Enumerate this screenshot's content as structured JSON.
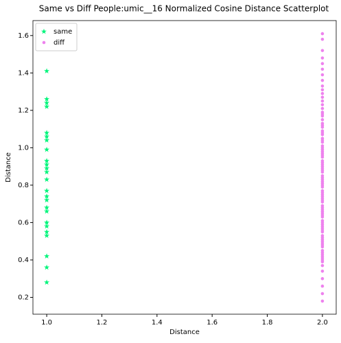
{
  "chart_data": {
    "type": "scatter",
    "title": "Same vs Diff People:umic__16 Normalized Cosine Distance Scatterplot",
    "x_label": "Distance",
    "y_label": "Distance",
    "xlim": [
      0.95,
      2.05
    ],
    "ylim": [
      0.11,
      1.68
    ],
    "xticks": [
      {
        "value": 1,
        "label": "1.0"
      },
      1.2,
      1.4,
      1.6,
      1.8,
      {
        "value": 2,
        "label": "2.0"
      }
    ],
    "yticks": [
      0.2,
      0.4,
      0.6,
      0.8,
      {
        "value": 1,
        "label": "1.0"
      },
      1.2,
      1.4,
      1.6
    ],
    "legend": "upper left",
    "series": [
      {
        "name": "same",
        "color": "#00f57a",
        "marker": "star",
        "x": [
          1,
          1,
          1,
          1,
          1,
          1,
          1,
          1,
          1,
          1,
          1,
          1,
          1,
          1,
          1,
          1,
          1,
          1,
          1,
          1,
          1,
          1,
          1,
          1,
          1
        ],
        "values": [
          1.41,
          1.26,
          1.24,
          1.22,
          1.08,
          1.06,
          1.04,
          0.99,
          0.93,
          0.91,
          0.89,
          0.87,
          0.83,
          0.77,
          0.74,
          0.72,
          0.68,
          0.66,
          0.6,
          0.58,
          0.55,
          0.53,
          0.42,
          0.36,
          0.28
        ]
      },
      {
        "name": "diff",
        "color": "#ee82ee",
        "marker": "circle",
        "x": [
          2,
          2,
          2,
          2,
          2,
          2,
          2,
          2,
          2,
          2,
          2,
          2,
          2,
          2,
          2,
          2,
          2,
          2,
          2,
          2,
          2,
          2,
          2,
          2,
          2,
          2,
          2,
          2,
          2,
          2,
          2,
          2,
          2,
          2,
          2,
          2,
          2,
          2,
          2,
          2,
          2,
          2,
          2,
          2,
          2,
          2,
          2,
          2,
          2,
          2,
          2,
          2,
          2,
          2,
          2,
          2,
          2,
          2,
          2,
          2,
          2,
          2,
          2,
          2,
          2,
          2,
          2,
          2,
          2,
          2,
          2,
          2,
          2,
          2,
          2,
          2,
          2,
          2,
          2,
          2,
          2,
          2,
          2,
          2,
          2,
          2,
          2,
          2,
          2,
          2
        ],
        "values": [
          1.61,
          1.58,
          1.52,
          1.48,
          1.45,
          1.42,
          1.39,
          1.36,
          1.33,
          1.31,
          1.29,
          1.27,
          1.25,
          1.23,
          1.21,
          1.19,
          1.17,
          1.15,
          1.13,
          1.11,
          1.09,
          1.07,
          1.05,
          1.03,
          1.01,
          0.99,
          0.97,
          0.95,
          0.93,
          0.91,
          0.89,
          0.87,
          0.85,
          0.83,
          0.81,
          0.79,
          0.77,
          0.75,
          0.73,
          0.71,
          0.69,
          0.67,
          0.65,
          0.63,
          0.61,
          0.59,
          0.57,
          0.55,
          0.53,
          0.51,
          0.49,
          0.47,
          0.45,
          0.43,
          0.41,
          0.39,
          0.37,
          0.34,
          0.3,
          0.26,
          0.22,
          0.18,
          1.12,
          1.04,
          0.96,
          0.88,
          0.8,
          0.72,
          0.64,
          0.56,
          0.48,
          0.4,
          1.18,
          1.0,
          0.92,
          0.84,
          0.76,
          0.68,
          0.6,
          0.52,
          0.44,
          1.08,
          0.98,
          0.9,
          0.82,
          0.74,
          0.66,
          0.58,
          0.5,
          0.42
        ]
      }
    ]
  }
}
